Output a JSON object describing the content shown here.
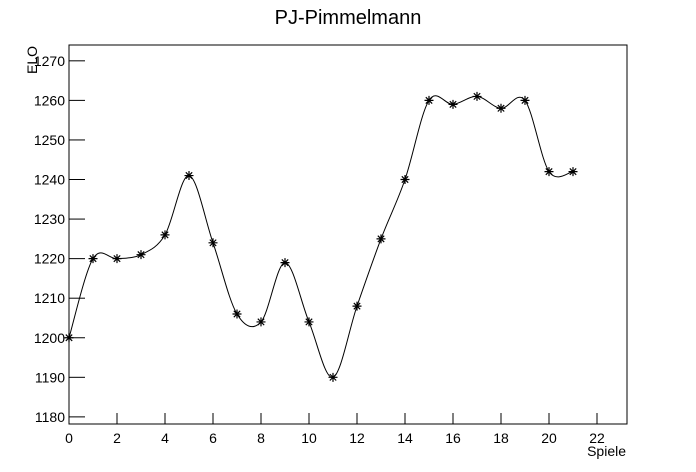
{
  "chart_data": {
    "type": "line",
    "title": "PJ-Pimmelmann",
    "x_label": "Spiele",
    "y_label": "ELO",
    "x": [
      0,
      1,
      2,
      3,
      4,
      5,
      6,
      7,
      8,
      9,
      10,
      11,
      12,
      13,
      14,
      15,
      16,
      17,
      18,
      19,
      20,
      21
    ],
    "series": [
      {
        "name": "ELO",
        "color": "#000000",
        "values": [
          1200,
          1220,
          1220,
          1221,
          1226,
          1241,
          1224,
          1206,
          1204,
          1219,
          1204,
          1190,
          1208,
          1225,
          1240,
          1260,
          1259,
          1261,
          1258,
          1260,
          1242,
          1242
        ]
      }
    ],
    "xlim": [
      0,
      23.25
    ],
    "ylim": [
      1178.2,
      1274
    ],
    "xticks": [
      0,
      2,
      4,
      6,
      8,
      10,
      12,
      14,
      16,
      18,
      20,
      22
    ],
    "yticks": [
      1180,
      1190,
      1200,
      1210,
      1220,
      1230,
      1240,
      1250,
      1260,
      1270
    ]
  }
}
